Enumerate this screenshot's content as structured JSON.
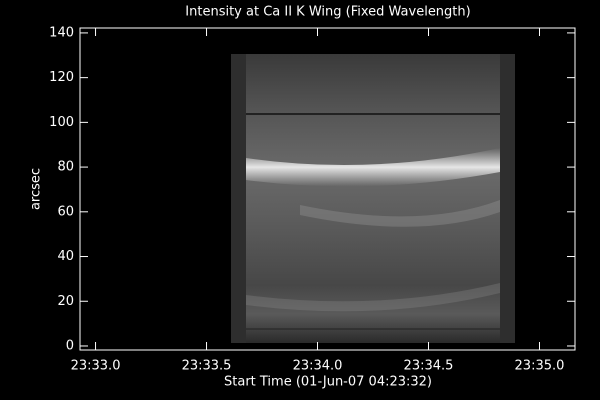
{
  "chart_data": {
    "type": "image",
    "title": "Intensity at Ca II K Wing (Fixed Wavelength)",
    "x_label": "Start Time (01-Jun-07 04:23:32)",
    "y_label": "arcsec",
    "xlim": [
      1412.93,
      1415.16
    ],
    "xticks": [
      {
        "value": 1413,
        "label": "23:33.0"
      },
      {
        "value": 1413.5,
        "label": "23:33.5"
      },
      {
        "value": 1414,
        "label": "23:34.0"
      },
      {
        "value": 1414.5,
        "label": "23:34.5"
      },
      {
        "value": 1415,
        "label": "23:35.0"
      }
    ],
    "ylim": [
      -1.8,
      142.2
    ],
    "yticks": [
      0,
      20,
      40,
      60,
      80,
      100,
      120,
      140
    ]
  }
}
